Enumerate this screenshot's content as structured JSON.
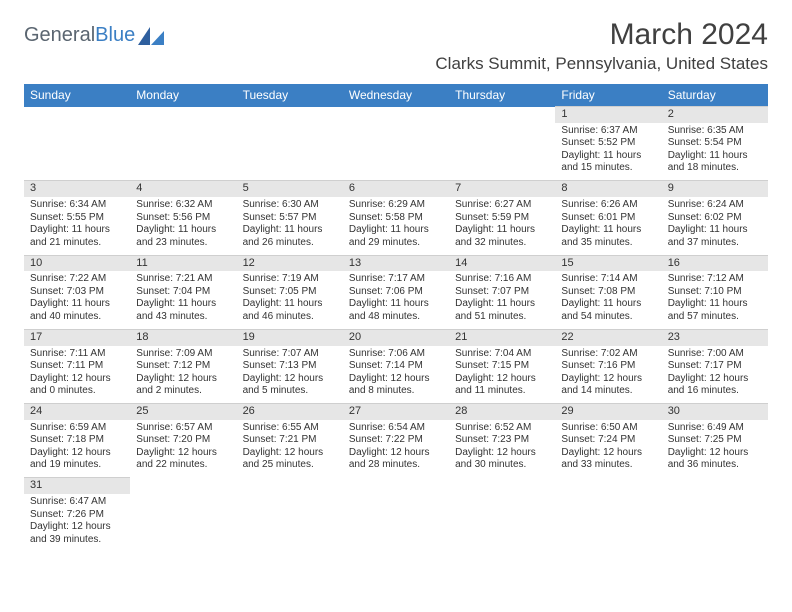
{
  "logo": {
    "part1": "General",
    "part2": "Blue"
  },
  "title": "March 2024",
  "subtitle": "Clarks Summit, Pennsylvania, United States",
  "header_color": "#3b7fc4",
  "daynum_bg": "#e6e6e6",
  "dayHeaders": [
    "Sunday",
    "Monday",
    "Tuesday",
    "Wednesday",
    "Thursday",
    "Friday",
    "Saturday"
  ],
  "weeks": [
    [
      null,
      null,
      null,
      null,
      null,
      {
        "n": "1",
        "sr": "Sunrise: 6:37 AM",
        "ss": "Sunset: 5:52 PM",
        "dl": "Daylight: 11 hours and 15 minutes."
      },
      {
        "n": "2",
        "sr": "Sunrise: 6:35 AM",
        "ss": "Sunset: 5:54 PM",
        "dl": "Daylight: 11 hours and 18 minutes."
      }
    ],
    [
      {
        "n": "3",
        "sr": "Sunrise: 6:34 AM",
        "ss": "Sunset: 5:55 PM",
        "dl": "Daylight: 11 hours and 21 minutes."
      },
      {
        "n": "4",
        "sr": "Sunrise: 6:32 AM",
        "ss": "Sunset: 5:56 PM",
        "dl": "Daylight: 11 hours and 23 minutes."
      },
      {
        "n": "5",
        "sr": "Sunrise: 6:30 AM",
        "ss": "Sunset: 5:57 PM",
        "dl": "Daylight: 11 hours and 26 minutes."
      },
      {
        "n": "6",
        "sr": "Sunrise: 6:29 AM",
        "ss": "Sunset: 5:58 PM",
        "dl": "Daylight: 11 hours and 29 minutes."
      },
      {
        "n": "7",
        "sr": "Sunrise: 6:27 AM",
        "ss": "Sunset: 5:59 PM",
        "dl": "Daylight: 11 hours and 32 minutes."
      },
      {
        "n": "8",
        "sr": "Sunrise: 6:26 AM",
        "ss": "Sunset: 6:01 PM",
        "dl": "Daylight: 11 hours and 35 minutes."
      },
      {
        "n": "9",
        "sr": "Sunrise: 6:24 AM",
        "ss": "Sunset: 6:02 PM",
        "dl": "Daylight: 11 hours and 37 minutes."
      }
    ],
    [
      {
        "n": "10",
        "sr": "Sunrise: 7:22 AM",
        "ss": "Sunset: 7:03 PM",
        "dl": "Daylight: 11 hours and 40 minutes."
      },
      {
        "n": "11",
        "sr": "Sunrise: 7:21 AM",
        "ss": "Sunset: 7:04 PM",
        "dl": "Daylight: 11 hours and 43 minutes."
      },
      {
        "n": "12",
        "sr": "Sunrise: 7:19 AM",
        "ss": "Sunset: 7:05 PM",
        "dl": "Daylight: 11 hours and 46 minutes."
      },
      {
        "n": "13",
        "sr": "Sunrise: 7:17 AM",
        "ss": "Sunset: 7:06 PM",
        "dl": "Daylight: 11 hours and 48 minutes."
      },
      {
        "n": "14",
        "sr": "Sunrise: 7:16 AM",
        "ss": "Sunset: 7:07 PM",
        "dl": "Daylight: 11 hours and 51 minutes."
      },
      {
        "n": "15",
        "sr": "Sunrise: 7:14 AM",
        "ss": "Sunset: 7:08 PM",
        "dl": "Daylight: 11 hours and 54 minutes."
      },
      {
        "n": "16",
        "sr": "Sunrise: 7:12 AM",
        "ss": "Sunset: 7:10 PM",
        "dl": "Daylight: 11 hours and 57 minutes."
      }
    ],
    [
      {
        "n": "17",
        "sr": "Sunrise: 7:11 AM",
        "ss": "Sunset: 7:11 PM",
        "dl": "Daylight: 12 hours and 0 minutes."
      },
      {
        "n": "18",
        "sr": "Sunrise: 7:09 AM",
        "ss": "Sunset: 7:12 PM",
        "dl": "Daylight: 12 hours and 2 minutes."
      },
      {
        "n": "19",
        "sr": "Sunrise: 7:07 AM",
        "ss": "Sunset: 7:13 PM",
        "dl": "Daylight: 12 hours and 5 minutes."
      },
      {
        "n": "20",
        "sr": "Sunrise: 7:06 AM",
        "ss": "Sunset: 7:14 PM",
        "dl": "Daylight: 12 hours and 8 minutes."
      },
      {
        "n": "21",
        "sr": "Sunrise: 7:04 AM",
        "ss": "Sunset: 7:15 PM",
        "dl": "Daylight: 12 hours and 11 minutes."
      },
      {
        "n": "22",
        "sr": "Sunrise: 7:02 AM",
        "ss": "Sunset: 7:16 PM",
        "dl": "Daylight: 12 hours and 14 minutes."
      },
      {
        "n": "23",
        "sr": "Sunrise: 7:00 AM",
        "ss": "Sunset: 7:17 PM",
        "dl": "Daylight: 12 hours and 16 minutes."
      }
    ],
    [
      {
        "n": "24",
        "sr": "Sunrise: 6:59 AM",
        "ss": "Sunset: 7:18 PM",
        "dl": "Daylight: 12 hours and 19 minutes."
      },
      {
        "n": "25",
        "sr": "Sunrise: 6:57 AM",
        "ss": "Sunset: 7:20 PM",
        "dl": "Daylight: 12 hours and 22 minutes."
      },
      {
        "n": "26",
        "sr": "Sunrise: 6:55 AM",
        "ss": "Sunset: 7:21 PM",
        "dl": "Daylight: 12 hours and 25 minutes."
      },
      {
        "n": "27",
        "sr": "Sunrise: 6:54 AM",
        "ss": "Sunset: 7:22 PM",
        "dl": "Daylight: 12 hours and 28 minutes."
      },
      {
        "n": "28",
        "sr": "Sunrise: 6:52 AM",
        "ss": "Sunset: 7:23 PM",
        "dl": "Daylight: 12 hours and 30 minutes."
      },
      {
        "n": "29",
        "sr": "Sunrise: 6:50 AM",
        "ss": "Sunset: 7:24 PM",
        "dl": "Daylight: 12 hours and 33 minutes."
      },
      {
        "n": "30",
        "sr": "Sunrise: 6:49 AM",
        "ss": "Sunset: 7:25 PM",
        "dl": "Daylight: 12 hours and 36 minutes."
      }
    ],
    [
      {
        "n": "31",
        "sr": "Sunrise: 6:47 AM",
        "ss": "Sunset: 7:26 PM",
        "dl": "Daylight: 12 hours and 39 minutes."
      },
      null,
      null,
      null,
      null,
      null,
      null
    ]
  ]
}
